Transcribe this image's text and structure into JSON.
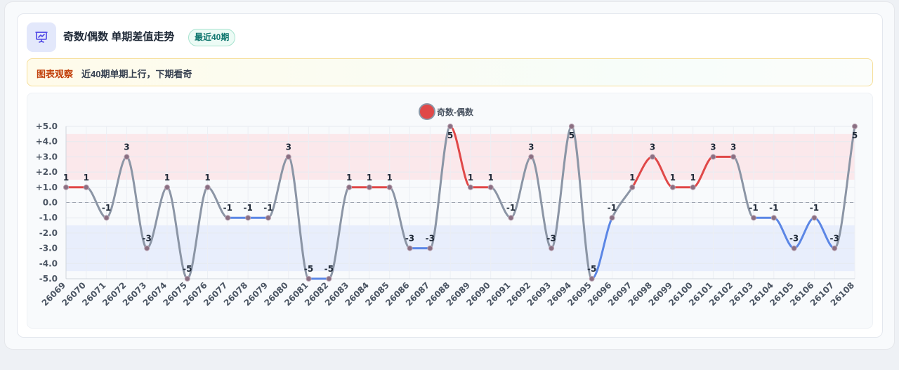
{
  "header": {
    "icon": "presentation-chart-icon",
    "title": "奇数/偶数 单期差值走势",
    "badge": "最近40期"
  },
  "insight": {
    "label": "图表观察",
    "text": "近40期单期上行，下期看奇"
  },
  "colors": {
    "up": "#e04848",
    "down": "#5b86e5",
    "neutral": "#8b95a5",
    "upBand": "#fbe4e8",
    "downBand": "#e5ebfb"
  },
  "chart_data": {
    "type": "line",
    "title": "",
    "xlabel": "",
    "ylabel": "",
    "ylim": [
      -5,
      5
    ],
    "yticks": [
      "+5.0",
      "+4.0",
      "+3.0",
      "+2.0",
      "+1.0",
      "0.0",
      "-1.0",
      "-2.0",
      "-3.0",
      "-4.0",
      "-5.0"
    ],
    "bands": [
      {
        "from": 1.5,
        "to": 4.5,
        "kind": "up"
      },
      {
        "from": -4.5,
        "to": -1.5,
        "kind": "down"
      }
    ],
    "x": [
      "26069",
      "26070",
      "26071",
      "26072",
      "26073",
      "26074",
      "26075",
      "26076",
      "26077",
      "26078",
      "26079",
      "26080",
      "26081",
      "26082",
      "26083",
      "26084",
      "26085",
      "26086",
      "26087",
      "26088",
      "26089",
      "26090",
      "26091",
      "26092",
      "26093",
      "26094",
      "26095",
      "26096",
      "26097",
      "26098",
      "26099",
      "26100",
      "26101",
      "26102",
      "26103",
      "26104",
      "26105",
      "26106",
      "26107",
      "26108"
    ],
    "series": [
      {
        "name": "奇数-偶数",
        "values": [
          1,
          1,
          -1,
          3,
          -3,
          1,
          -5,
          1,
          -1,
          -1,
          -1,
          3,
          -5,
          -5,
          1,
          1,
          1,
          -3,
          -3,
          5,
          1,
          1,
          -1,
          3,
          -3,
          5,
          -5,
          -1,
          1,
          3,
          1,
          1,
          3,
          3,
          -1,
          -1,
          -3,
          -1,
          -3,
          5
        ]
      }
    ],
    "legend": "top-center",
    "grid": true
  }
}
